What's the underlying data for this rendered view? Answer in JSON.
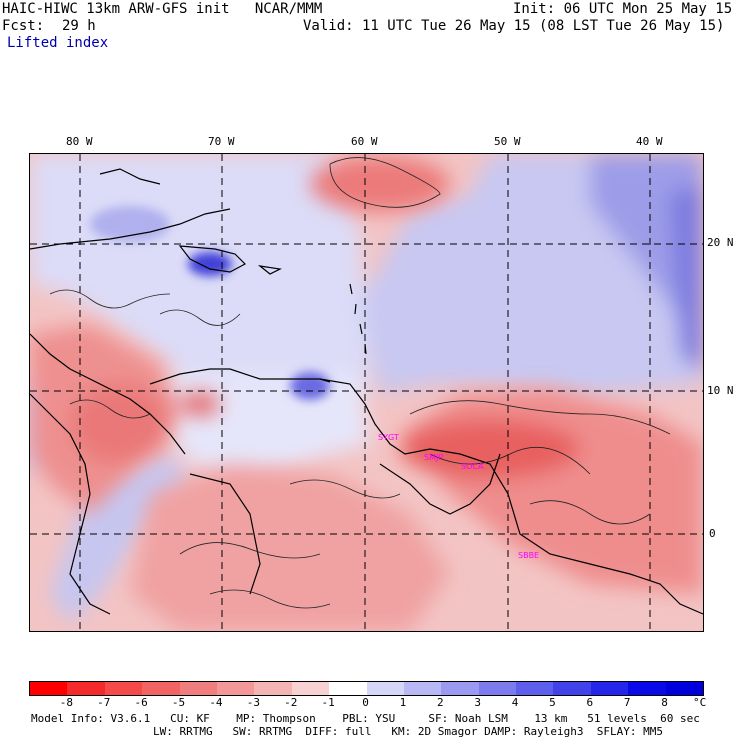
{
  "header": {
    "title_left": "HAIC-HIWC 13km ARW-GFS init   NCAR/MMM",
    "init": "Init: 06 UTC Mon 25 May 15",
    "fcst_label": "Fcst:",
    "fcst_value": "29 h",
    "valid": "Valid: 11 UTC Tue 26 May 15 (08 LST Tue 26 May 15)",
    "field": "Lifted index"
  },
  "map": {
    "lon_labels": [
      "80 W",
      "70 W",
      "60 W",
      "50 W",
      "40 W"
    ],
    "lat_labels": [
      "20 N",
      "10 N",
      "0"
    ],
    "stations": [
      "SYGT",
      "SMJP",
      "SOCA",
      "SBBE"
    ]
  },
  "colorbar": {
    "labels": [
      "-8",
      "-7",
      "-6",
      "-5",
      "-4",
      "-3",
      "-2",
      "-1",
      "0",
      "1",
      "2",
      "3",
      "4",
      "5",
      "6",
      "7",
      "8"
    ],
    "unit": "°C",
    "colors": [
      "#ff0000",
      "#f52a2a",
      "#f54a4a",
      "#f26464",
      "#f07e7e",
      "#f29898",
      "#f4b4b4",
      "#f8d2d2",
      "#ffffff",
      "#d6d6f8",
      "#b8b8f4",
      "#9a9af0",
      "#7c7cee",
      "#5e5eec",
      "#4242ea",
      "#2626ea",
      "#0a0ae8",
      "#0000dd"
    ]
  },
  "footer": {
    "line1": "Model Info: V3.6.1   CU: KF    MP: Thompson    PBL: YSU     SF: Noah LSM    13 km   51 levels  60 sec",
    "line2": "LW: RRTMG   SW: RRTMG  DIFF: full   KM: 2D Smagor DAMP: Rayleigh3  SFLAY: MM5"
  }
}
